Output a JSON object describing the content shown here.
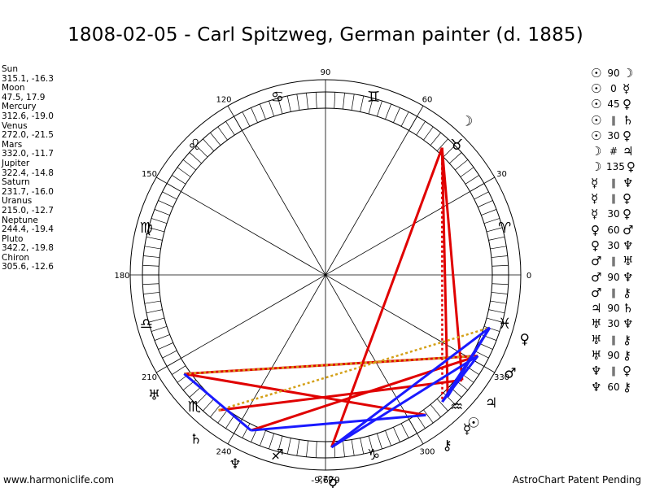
{
  "title": "1808-02-05 - Carl Spitzweg, German painter (d. 1885)",
  "planets": [
    {
      "name": "Sun",
      "coords": "315.1, -16.3",
      "lon": 315.1,
      "glyph": "☉"
    },
    {
      "name": "Moon",
      "coords": "47.5, 17.9",
      "lon": 47.5,
      "glyph": "☽"
    },
    {
      "name": "Mercury",
      "coords": "312.6, -19.0",
      "lon": 312.6,
      "glyph": "☿"
    },
    {
      "name": "Venus",
      "coords": "272.0, -21.5",
      "lon": 272.0,
      "glyph": "♀"
    },
    {
      "name": "Mars",
      "coords": "332.0, -11.7",
      "lon": 332.0,
      "glyph": "♂"
    },
    {
      "name": "Jupiter",
      "coords": "322.4, -14.8",
      "lon": 322.4,
      "glyph": "♃"
    },
    {
      "name": "Saturn",
      "coords": "231.7, -16.0",
      "lon": 231.7,
      "glyph": "♄"
    },
    {
      "name": "Uranus",
      "coords": "215.0, -12.7",
      "lon": 215.0,
      "glyph": "♅"
    },
    {
      "name": "Neptune",
      "coords": "244.4, -19.4",
      "lon": 244.4,
      "glyph": "♆"
    },
    {
      "name": "Pluto",
      "coords": "342.2, -19.8",
      "lon": 342.2,
      "glyph": "♀"
    },
    {
      "name": "Chiron",
      "coords": "305.6, -12.6",
      "lon": 305.6,
      "glyph": "⚷"
    }
  ],
  "degree_labels": [
    "0",
    "30",
    "60",
    "90",
    "120",
    "150",
    "180",
    "210",
    "240",
    "270",
    "300",
    "330"
  ],
  "bottom_label": "-9,679",
  "zodiac_glyphs": [
    "♈",
    "♉",
    "♊",
    "♋",
    "♌",
    "♍",
    "♎",
    "♏",
    "♐",
    "♑",
    "♒",
    "♓"
  ],
  "aspects": [
    {
      "p1": "☉",
      "asp": "90",
      "p2": "☽"
    },
    {
      "p1": "☉",
      "asp": "0",
      "p2": "☿"
    },
    {
      "p1": "☉",
      "asp": "45",
      "p2": "♀"
    },
    {
      "p1": "☉",
      "asp": "∥",
      "p2": "♄"
    },
    {
      "p1": "☉",
      "asp": "30",
      "p2": "♀"
    },
    {
      "p1": "☽",
      "asp": "#",
      "p2": "♃"
    },
    {
      "p1": "☽",
      "asp": "135",
      "p2": "♀"
    },
    {
      "p1": "☿",
      "asp": "∥",
      "p2": "♆"
    },
    {
      "p1": "☿",
      "asp": "∥",
      "p2": "♀"
    },
    {
      "p1": "☿",
      "asp": "30",
      "p2": "♀"
    },
    {
      "p1": "♀",
      "asp": "60",
      "p2": "♂"
    },
    {
      "p1": "♀",
      "asp": "30",
      "p2": "♆"
    },
    {
      "p1": "♂",
      "asp": "∥",
      "p2": "♅"
    },
    {
      "p1": "♂",
      "asp": "90",
      "p2": "♆"
    },
    {
      "p1": "♂",
      "asp": "∥",
      "p2": "⚷"
    },
    {
      "p1": "♃",
      "asp": "90",
      "p2": "♄"
    },
    {
      "p1": "♅",
      "asp": "30",
      "p2": "♆"
    },
    {
      "p1": "♅",
      "asp": "∥",
      "p2": "⚷"
    },
    {
      "p1": "♅",
      "asp": "90",
      "p2": "⚷"
    },
    {
      "p1": "♆",
      "asp": "∥",
      "p2": "♀"
    },
    {
      "p1": "♆",
      "asp": "60",
      "p2": "⚷"
    }
  ],
  "aspect_lines": [
    {
      "a": "Moon",
      "b": "Sun",
      "color": "#e00000",
      "style": "solid"
    },
    {
      "a": "Moon",
      "b": "Jupiter",
      "color": "#e00000",
      "style": "solid"
    },
    {
      "a": "Moon",
      "b": "Venus",
      "color": "#e00000",
      "style": "solid"
    },
    {
      "a": "Moon",
      "b": "Mercury",
      "color": "#e00000",
      "style": "dotted"
    },
    {
      "a": "Uranus",
      "b": "Chiron",
      "color": "#e00000",
      "style": "solid"
    },
    {
      "a": "Uranus",
      "b": "Mars",
      "color": "#e00000",
      "style": "solid"
    },
    {
      "a": "Saturn",
      "b": "Jupiter",
      "color": "#e00000",
      "style": "solid"
    },
    {
      "a": "Neptune",
      "b": "Mars",
      "color": "#e00000",
      "style": "solid"
    },
    {
      "a": "Saturn",
      "b": "Pluto",
      "color": "#d4a017",
      "style": "dotted"
    },
    {
      "a": "Uranus",
      "b": "Mars",
      "color": "#d4a017",
      "style": "dotted"
    },
    {
      "a": "Venus",
      "b": "Pluto",
      "color": "#d4a017",
      "style": "dotted"
    },
    {
      "a": "Uranus",
      "b": "Neptune",
      "color": "#1a1aff",
      "style": "solid"
    },
    {
      "a": "Neptune",
      "b": "Chiron",
      "color": "#1a1aff",
      "style": "solid"
    },
    {
      "a": "Venus",
      "b": "Mars",
      "color": "#1a1aff",
      "style": "solid"
    },
    {
      "a": "Venus",
      "b": "Pluto",
      "color": "#1a1aff",
      "style": "solid"
    },
    {
      "a": "Sun",
      "b": "Pluto",
      "color": "#1a1aff",
      "style": "solid"
    },
    {
      "a": "Mercury",
      "b": "Pluto",
      "color": "#1a1aff",
      "style": "solid"
    },
    {
      "a": "Mercury",
      "b": "Mars",
      "color": "#1a1aff",
      "style": "solid"
    }
  ],
  "footer_left": "www.harmoniclife.com",
  "footer_right": "AstroChart Patent Pending"
}
